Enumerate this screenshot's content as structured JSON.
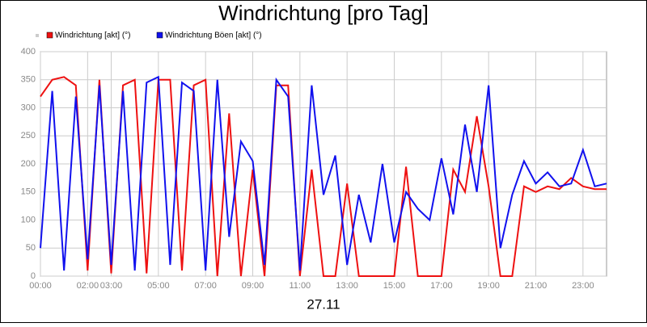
{
  "chart_data": {
    "type": "line",
    "title": "Windrichtung [pro Tag]",
    "xlabel": "27.11",
    "x": [
      0,
      0.5,
      1,
      1.5,
      2,
      2.5,
      3,
      3.5,
      4,
      4.5,
      5,
      5.5,
      6,
      6.5,
      7,
      7.5,
      8,
      8.5,
      9,
      9.5,
      10,
      10.5,
      11,
      11.5,
      12,
      12.5,
      13,
      13.5,
      14,
      14.5,
      15,
      15.5,
      16,
      16.5,
      17,
      17.5,
      18,
      18.5,
      19,
      19.5,
      20,
      20.5,
      21,
      21.5,
      22,
      22.5,
      23,
      23.5,
      24
    ],
    "series": [
      {
        "name": "Windrichtung [akt] (°)",
        "color": "#ee1111",
        "values": [
          320,
          350,
          355,
          340,
          10,
          350,
          5,
          340,
          350,
          5,
          350,
          350,
          10,
          340,
          350,
          0,
          290,
          0,
          190,
          0,
          340,
          340,
          0,
          190,
          0,
          0,
          165,
          0,
          0,
          0,
          0,
          195,
          0,
          0,
          0,
          190,
          150,
          285,
          160,
          0,
          0,
          160,
          150,
          160,
          155,
          175,
          160,
          155,
          155
        ]
      },
      {
        "name": "Windrichtung Böen [akt] (°)",
        "color": "#1111ee",
        "values": [
          50,
          330,
          10,
          320,
          30,
          340,
          20,
          330,
          10,
          345,
          355,
          20,
          345,
          330,
          10,
          350,
          70,
          240,
          205,
          20,
          350,
          320,
          10,
          340,
          145,
          215,
          20,
          145,
          60,
          200,
          60,
          150,
          120,
          100,
          210,
          110,
          270,
          150,
          340,
          50,
          145,
          205,
          165,
          185,
          160,
          165,
          225,
          160,
          165
        ]
      }
    ],
    "xlim": [
      0,
      24
    ],
    "xticks": [
      {
        "value": 0,
        "label": "00:00"
      },
      {
        "value": 2,
        "label": "02:00"
      },
      {
        "value": 3,
        "label": "03:00"
      },
      {
        "value": 5,
        "label": "05:00"
      },
      {
        "value": 7,
        "label": "07:00"
      },
      {
        "value": 9,
        "label": "09:00"
      },
      {
        "value": 11,
        "label": "11:00"
      },
      {
        "value": 13,
        "label": "13:00"
      },
      {
        "value": 15,
        "label": "15:00"
      },
      {
        "value": 17,
        "label": "17:00"
      },
      {
        "value": 19,
        "label": "19:00"
      },
      {
        "value": 21,
        "label": "21:00"
      },
      {
        "value": 23,
        "label": "23:00"
      }
    ],
    "ylim": [
      0,
      400
    ],
    "yticks": [
      0,
      50,
      100,
      150,
      200,
      250,
      300,
      350,
      400
    ],
    "grid": true
  }
}
